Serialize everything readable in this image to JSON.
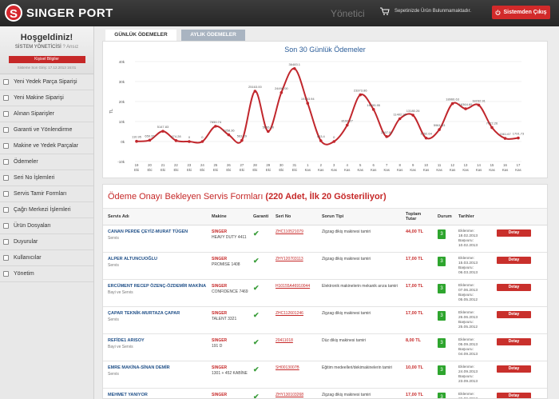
{
  "header": {
    "logo_letter": "S",
    "logo_text": "SINGER PORT",
    "title": "Yönetici",
    "cart_text": "Sepetinizde Ürün Bulunmamaktadır.",
    "cart_icon": "cart-icon",
    "exit_label": "Sistemden Çıkış",
    "exit_icon": "power-icon"
  },
  "sidebar": {
    "welcome": "Hoşgeldiniz!",
    "user": "SİSTEM YÖNETİCİSİ",
    "user_sub": "? Ansız",
    "info_button": "Kişisel Bilgiler",
    "last_login": "Sisteme Son Giriş: 17.12.2013 16:01",
    "items": [
      {
        "label": "Yeni Yedek Parça Siparişi"
      },
      {
        "label": "Yeni Makine Siparişi"
      },
      {
        "label": "Alınan Siparişler"
      },
      {
        "label": "Garanti ve Yönlendirme"
      },
      {
        "label": "Makine ve Yedek Parçalar"
      },
      {
        "label": "Ödemeler"
      },
      {
        "label": "Seri No İşlemleri"
      },
      {
        "label": "Servis Tamir Formları"
      },
      {
        "label": "Çağrı Merkezi İşlemleri"
      },
      {
        "label": "Ürün Dosyaları"
      },
      {
        "label": "Duyurular"
      },
      {
        "label": "Kullanıcılar"
      },
      {
        "label": "Yönetim"
      }
    ]
  },
  "tabs": [
    {
      "label": "GÜNLÜK ÖDEMELER"
    },
    {
      "label": "AYLIK ÖDEMELER"
    }
  ],
  "chart_data": {
    "type": "line",
    "title": "Son 30 Günlük Ödemeler",
    "ylabel": "TL",
    "ylim": [
      -10000,
      40000
    ],
    "yticks": [
      "-10k",
      "0k",
      "10k",
      "20k",
      "30k",
      "40k"
    ],
    "grid": true,
    "color": "#c1272d",
    "categories": [
      "19\nEki",
      "20\nEki",
      "21\nEki",
      "22\nEki",
      "23\nEki",
      "24\nEki",
      "25\nEki",
      "26\nEki",
      "27\nEki",
      "28\nEki",
      "29\nEki",
      "30\nEki",
      "31\nEki",
      "1\nKas",
      "2\nKas",
      "3\nKas",
      "4\nKas",
      "5\nKas",
      "6\nKas",
      "7\nKas",
      "8\nKas",
      "9\nKas",
      "10\nKas",
      "11\nKas",
      "12\nKas",
      "13\nKas",
      "14\nKas",
      "15\nKas",
      "16\nKas",
      "17\nKas"
    ],
    "values": [
      110.95,
      659.26,
      5147.83,
      474.28,
      0,
      0,
      7650.74,
      3358.36,
      563.29,
      25163.0,
      5066.3,
      24498.0,
      36483.1,
      19153.94,
      403.4,
      0,
      8192.27,
      23373.86,
      16055.95,
      2467.0,
      11402.98,
      13180.26,
      1752.64,
      5961.53,
      18966.63,
      16364.69,
      18232.91,
      7022.26,
      1561.67,
      1791.73
    ],
    "labels": [
      "110.95",
      "659.26",
      "5147.83",
      "474.28",
      "0",
      "0",
      "7650.74",
      "3358.36",
      "563.29",
      "25163.00",
      "5066.30",
      "24498.00",
      "36483.1",
      "19153.94",
      "403.4",
      "0",
      "8192.27",
      "23373.86",
      "16055.95",
      "2467.00",
      "11402.98",
      "13180.26",
      "1752.64",
      "5961.53",
      "18966.63",
      "16364.69",
      "18232.91",
      "7022.26",
      "1561.67",
      "1791.73"
    ]
  },
  "table": {
    "title_main": "Ödeme Onayı Bekleyen Servis Formları",
    "title_count": "(220 Adet, İlk 20 Gösteriliyor)",
    "headers": [
      "Servis Adı",
      "Makine",
      "Garanti",
      "Seri No",
      "Sorun Tipi",
      "Toplam Tutar",
      "Durum",
      "Tarihler",
      ""
    ],
    "status_label": "3",
    "detail_label": "Detay",
    "brand": "SINGER",
    "rows": [
      {
        "name": "CANAN PERDE ÇEYİZ-MURAT TÜGEN",
        "type": "Servis",
        "model": "HEAVY DUTY 4411",
        "serial": "ZHC110521079",
        "issue": "Zigzag dikiş makinesi tamiri",
        "price": "44,00 TL",
        "dates": "Eklenme: 18.02.2013 Başvuru: 10.02.2013"
      },
      {
        "name": "ALPER ALTUNCUOĞLU",
        "type": "Servis",
        "model": "PROMISE 1408",
        "serial": "ZHY120703113",
        "issue": "Zigzag dikiş makinesi tamiri",
        "price": "17,00 TL",
        "dates": "Eklenme: 15.03.2013 Başvuru: 06.03.2013"
      },
      {
        "name": "ERCÜMENT RECEP ÖZENÇ-ÖZDEMİR MAKİNA",
        "type": "Bayi ve Servis",
        "model": "CONFIDENCE 7469",
        "serial": "H10155A46910044",
        "issue": "Elektronik makinelerin mekanik arıza tamiri",
        "price": "17,00 TL",
        "dates": "Eklenme: 07.06.2013 Başvuru: 05.05.2012"
      },
      {
        "name": "ÇAPAR TEKNİK-MURTAZA ÇAPAR",
        "type": "Servis",
        "model": "TALENT 3321",
        "serial": "ZHC112601246",
        "issue": "Zigzag dikiş makinesi tamiri",
        "price": "17,00 TL",
        "dates": "Eklenme: 26.06.2013 Başvuru: 25.05.2012"
      },
      {
        "name": "REFİDE1 ARISOY",
        "type": "Bayi ve Servis",
        "model": "191 D",
        "serial": "20411018",
        "issue": "Düz dikiş makinesi tamiri",
        "price": "8,00 TL",
        "dates": "Eklenme: 05.09.2013 Başvuru: 04.09.2013"
      },
      {
        "name": "EMRE MAKİNA-SİNAN DEMİR",
        "type": "Servis",
        "model": "1301 + 452 KABİNE",
        "serial": "SH0013007B",
        "issue": "Eğitim medeelleri/dekimakinelerin tamiri",
        "price": "10,00 TL",
        "dates": "Eklenme: 24.09.2013 Başvuru: 23.09.2013"
      },
      {
        "name": "MEHMET YANIYOR",
        "type": "Bayi ve Servis",
        "model": "PROMISE 1409",
        "serial": "ZHY130103268",
        "issue": "Zigzag dikiş makinesi tamiri",
        "price": "17,00 TL",
        "dates": "Eklenme: 26.09.2013"
      }
    ]
  }
}
